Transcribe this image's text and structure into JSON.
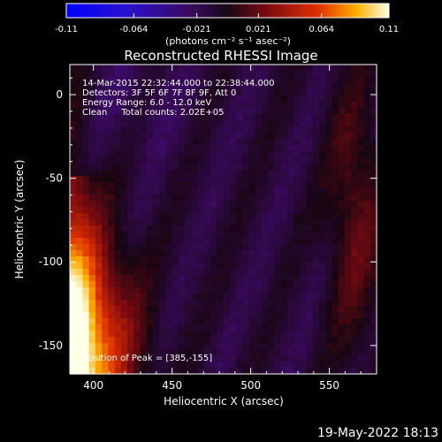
{
  "colorbar": {
    "ticks": [
      "-0.11",
      "-0.064",
      "-0.021",
      "0.021",
      "0.064",
      "0.11"
    ],
    "units": "(photons cm⁻² s⁻¹ asec⁻²)",
    "range": [
      -0.11,
      0.11
    ]
  },
  "chart_data": {
    "type": "heatmap",
    "title": "Reconstructed RHESSI Image",
    "xlabel": "Heliocentric X (arcsec)",
    "ylabel": "Heliocentric Y (arcsec)",
    "xlim": [
      385,
      580
    ],
    "ylim": [
      -167,
      18
    ],
    "x_ticks": [
      400,
      450,
      500,
      550
    ],
    "y_ticks": [
      0,
      -50,
      -100,
      -150
    ],
    "annotations": [
      "14-Mar-2015 22:32:44.000 to 22:38:44.000",
      "Detectors: 3F 5F 6F 7F 8F 9F, Att 0",
      "Energy Range: 6.0 - 12.0 keV",
      "Clean     Total counts: 2.02E+05"
    ],
    "peak_label": "Position of Peak = [385,-155]",
    "peak": [
      385,
      -155
    ]
  },
  "footer": {
    "timestamp": "19-May-2022 18:13"
  }
}
